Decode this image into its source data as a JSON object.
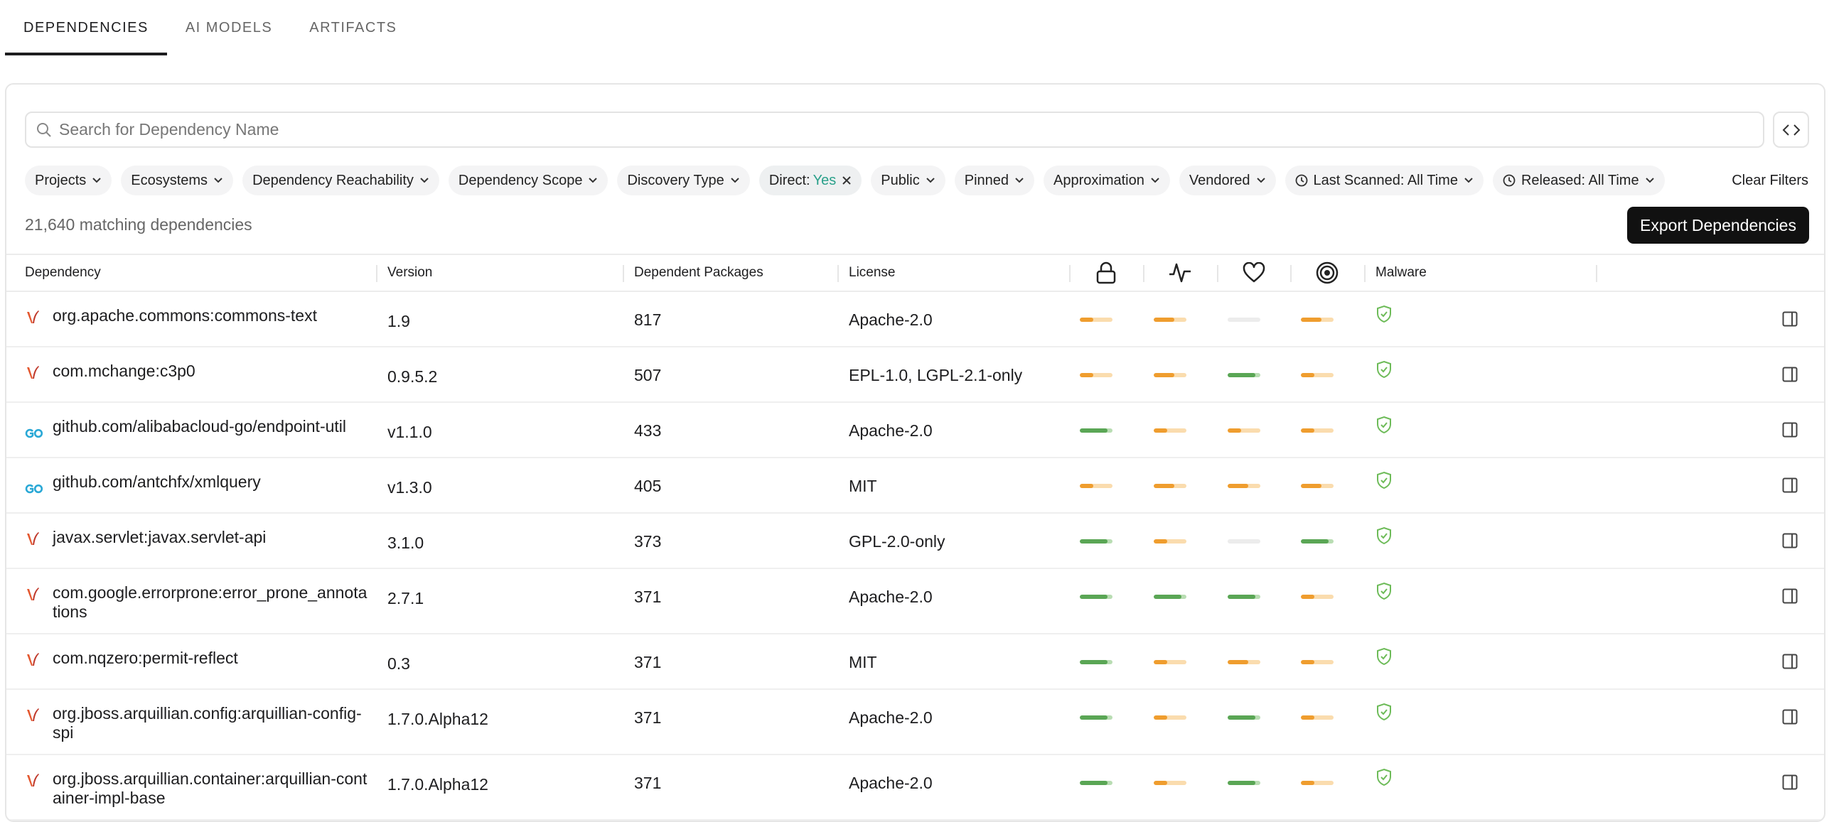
{
  "tabs": [
    "DEPENDENCIES",
    "AI MODELS",
    "ARTIFACTS"
  ],
  "search": {
    "placeholder": "Search for Dependency Name"
  },
  "filters": [
    {
      "label": "Projects"
    },
    {
      "label": "Ecosystems"
    },
    {
      "label": "Dependency Reachability"
    },
    {
      "label": "Dependency Scope"
    },
    {
      "label": "Discovery Type"
    },
    {
      "label": "Direct:",
      "value": "Yes"
    },
    {
      "label": "Public"
    },
    {
      "label": "Pinned"
    },
    {
      "label": "Approximation"
    },
    {
      "label": "Vendored"
    },
    {
      "label": "Last Scanned: All Time"
    },
    {
      "label": "Released: All Time"
    }
  ],
  "clear_filters": "Clear Filters",
  "count": "21,640 matching dependencies",
  "export_button": "Export Dependencies",
  "table": {
    "columns": [
      "Dependency",
      "Version",
      "Dependent Packages",
      "License",
      "Malware"
    ],
    "rows": [
      {
        "name": "org.apache.commons:commons-text",
        "version": "1.9",
        "dependent_packages": 817,
        "license": "Apache-2.0"
      },
      {
        "name": "com.mchange:c3p0",
        "version": "0.9.5.2",
        "dependent_packages": 507,
        "license": "EPL-1.0, LGPL-2.1-only"
      },
      {
        "name": "github.com/alibabacloud-go/endpoint-util",
        "version": "v1.1.0",
        "dependent_packages": 433,
        "license": "Apache-2.0"
      },
      {
        "name": "github.com/antchfx/xmlquery",
        "version": "v1.3.0",
        "dependent_packages": 405,
        "license": "MIT"
      },
      {
        "name": "javax.servlet:javax.servlet-api",
        "version": "3.1.0",
        "dependent_packages": 373,
        "license": "GPL-2.0-only"
      },
      {
        "name": "com.google.errorprone:error_prone_annotations",
        "version": "2.7.1",
        "dependent_packages": 371,
        "license": "Apache-2.0"
      },
      {
        "name": "com.nqzero:permit-reflect",
        "version": "0.3",
        "dependent_packages": 371,
        "license": "MIT"
      },
      {
        "name": "org.jboss.arquillian.config:arquillian-config-spi",
        "version": "1.7.0.Alpha12",
        "dependent_packages": 371,
        "license": "Apache-2.0"
      },
      {
        "name": "org.jboss.arquillian.container:arquillian-container-impl-base",
        "version": "1.7.0.Alpha12",
        "dependent_packages": 371,
        "license": "Apache-2.0"
      }
    ]
  }
}
